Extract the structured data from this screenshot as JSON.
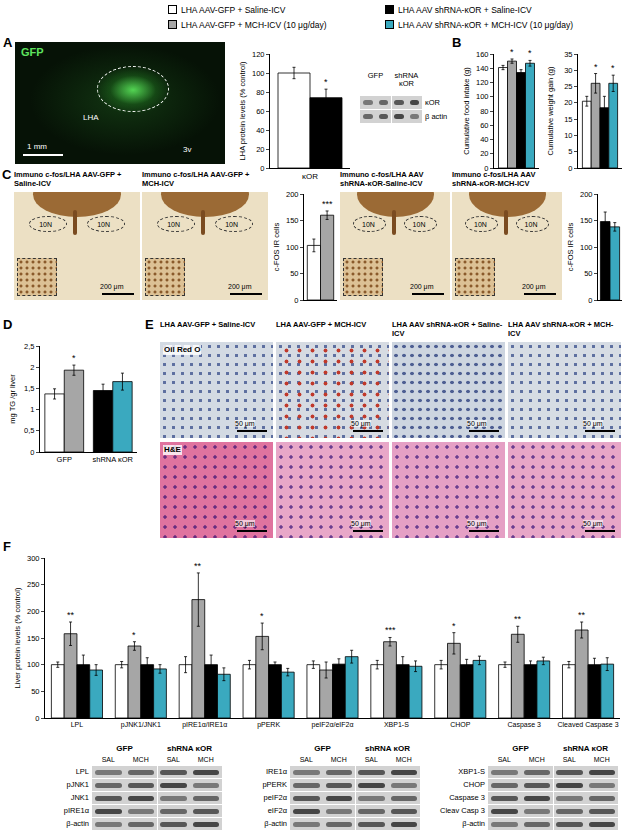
{
  "legend": [
    {
      "name": "LHA AAV-GFP + Saline-ICV",
      "color": "#ffffff"
    },
    {
      "name": "LHA AAV-GFP + MCH-ICV (10 μg/day)",
      "color": "#a6a6a6"
    },
    {
      "name": "LHA AAV shRNA-κOR + Saline-ICV",
      "color": "#000000"
    },
    {
      "name": "LHA AAV shRNA-κOR + MCH-ICV (10 μg/day)",
      "color": "#3aa9bf"
    }
  ],
  "panels": [
    "A",
    "B",
    "C",
    "D",
    "E",
    "F"
  ],
  "images": {
    "A": {
      "stain": "GFP",
      "labels": [
        "LHA",
        "3v"
      ],
      "scale": "1 mm"
    },
    "C": [
      {
        "title": "Immuno c-fos/LHA AAV-GFP + Saline-ICV",
        "labels": [
          "10N",
          "10N"
        ],
        "scale": "200 μm"
      },
      {
        "title": "Immuno c-fos/LHA AAV-GFP + MCH-ICV",
        "labels": [
          "10N",
          "10N"
        ],
        "scale": "200 μm"
      },
      {
        "title": "Immuno c-fos/LHA AAV shRNA-κOR-Saline-ICV",
        "labels": [
          "10N",
          "10N"
        ],
        "scale": "200 μm"
      },
      {
        "title": "Immuno c-fos/LHA AAV shRNA-κOR-MCH-ICV",
        "labels": [
          "10N",
          "10N"
        ],
        "scale": "200 μm"
      }
    ],
    "E": {
      "titles": [
        "LHA AAV-GFP + Saline-ICV",
        "LHA AAV-GFP + MCH-ICV",
        "LHA AAV shRNA-κOR + Saline-ICV",
        "LHA AAV shRNA-κOR + MCH-ICV"
      ],
      "rows": [
        {
          "stain": "Oil Red O",
          "scale": "50 μm"
        },
        {
          "stain": "H&E",
          "scale": "50 μm"
        }
      ]
    }
  },
  "blots": {
    "A": {
      "columns": [
        "GFP",
        "shRNA κOR"
      ],
      "rows": [
        "κOR",
        "β actin"
      ]
    },
    "F": [
      {
        "columns": [
          "GFP",
          "shRNA κOR"
        ],
        "lanes": [
          "SAL",
          "MCH",
          "SAL",
          "MCH"
        ],
        "rows": [
          "LPL",
          "pJNK1",
          "JNK1",
          "pIRE1α",
          "β-actin"
        ]
      },
      {
        "columns": [
          "GFP",
          "shRNA κOR"
        ],
        "lanes": [
          "SAL",
          "MCH",
          "SAL",
          "MCH"
        ],
        "rows": [
          "IRE1α",
          "pPERK",
          "peIF2α",
          "eIF2α",
          "β-actin"
        ]
      },
      {
        "columns": [
          "GFP",
          "shRNA κOR"
        ],
        "lanes": [
          "SAL",
          "MCH",
          "SAL",
          "MCH"
        ],
        "rows": [
          "XBP1-S",
          "CHOP",
          "Caspase 3",
          "Cleav Casp 3",
          "β-actin"
        ]
      }
    ]
  },
  "chart_data": [
    {
      "type": "bar",
      "y_label": "LHA protein levels (% control)",
      "categories": [
        "κOR"
      ],
      "ylim": [
        0,
        120
      ],
      "yticks": [
        0,
        20,
        40,
        60,
        80,
        100,
        120
      ],
      "series": [
        {
          "color": "#ffffff",
          "values": [
            100
          ],
          "errors": [
            6
          ]
        },
        {
          "color": "#000000",
          "values": [
            74
          ],
          "errors": [
            9
          ],
          "significance": [
            "*"
          ]
        }
      ]
    },
    {
      "type": "bar",
      "y_label": "Cumulative food intake (g)",
      "categories": [
        null
      ],
      "ylim": [
        0,
        160
      ],
      "yticks": [
        0,
        20,
        40,
        60,
        80,
        100,
        120,
        140,
        160
      ],
      "series": [
        {
          "color": "#ffffff",
          "values": [
            141
          ],
          "errors": [
            3
          ]
        },
        {
          "color": "#a6a6a6",
          "values": [
            150
          ],
          "errors": [
            3
          ],
          "significance": [
            "*"
          ]
        },
        {
          "color": "#000000",
          "values": [
            134
          ],
          "errors": [
            4
          ]
        },
        {
          "color": "#3aa9bf",
          "values": [
            147
          ],
          "errors": [
            4
          ],
          "significance": [
            "*"
          ]
        }
      ]
    },
    {
      "type": "bar",
      "y_label": "Cumulative weight gain (g)",
      "categories": [
        null
      ],
      "ylim": [
        0,
        35
      ],
      "yticks": [
        0,
        5,
        10,
        15,
        20,
        25,
        30,
        35
      ],
      "series": [
        {
          "color": "#ffffff",
          "values": [
            20.5
          ],
          "errors": [
            1.5
          ]
        },
        {
          "color": "#a6a6a6",
          "values": [
            26
          ],
          "errors": [
            3
          ],
          "significance": [
            "*"
          ]
        },
        {
          "color": "#000000",
          "values": [
            18.5
          ],
          "errors": [
            3.5
          ]
        },
        {
          "color": "#3aa9bf",
          "values": [
            26
          ],
          "errors": [
            2.5
          ],
          "significance": [
            "*"
          ]
        }
      ]
    },
    {
      "type": "bar",
      "y_label": "c-FOS IR cells",
      "categories": [
        null
      ],
      "ylim": [
        0,
        200
      ],
      "yticks": [
        0,
        50,
        100,
        150,
        200
      ],
      "series": [
        {
          "color": "#ffffff",
          "values": [
            103
          ],
          "errors": [
            12
          ]
        },
        {
          "color": "#a6a6a6",
          "values": [
            160
          ],
          "errors": [
            8
          ],
          "significance": [
            "***"
          ]
        }
      ]
    },
    {
      "type": "bar",
      "y_label": "c-FOS IR cells",
      "categories": [
        null
      ],
      "ylim": [
        0,
        200
      ],
      "yticks": [
        0,
        50,
        100,
        150,
        200
      ],
      "series": [
        {
          "color": "#000000",
          "values": [
            148
          ],
          "errors": [
            18
          ]
        },
        {
          "color": "#3aa9bf",
          "values": [
            138
          ],
          "errors": [
            8
          ]
        }
      ]
    },
    {
      "type": "bar",
      "y_label": "mg TG /gr liver",
      "categories": [
        "GFP",
        "shRNA κOR"
      ],
      "ylim": [
        0,
        2.5
      ],
      "yticks": [
        0,
        {
          "value": 0.5,
          "label": "0,5"
        },
        1,
        {
          "value": 1.5,
          "label": "1,5"
        },
        2,
        {
          "value": 2.5,
          "label": "2,5"
        }
      ],
      "series": [
        {
          "colors": [
            "#ffffff",
            "#000000"
          ],
          "values": [
            1.37,
            1.45
          ],
          "errors": [
            0.12,
            0.15
          ]
        },
        {
          "colors": [
            "#a6a6a6",
            "#3aa9bf"
          ],
          "values": [
            1.93,
            1.66
          ],
          "errors": [
            0.12,
            0.2
          ],
          "significance": [
            "*",
            null
          ]
        }
      ]
    },
    {
      "type": "bar",
      "y_label": "Liver protein levels (% control)",
      "categories": [
        "LPL",
        "pJNK1/JNK1",
        "pIRE1α/IRE1α",
        "pPERK",
        "peIF2α/eIF2α",
        "XBP1-S",
        "CHOP",
        "Caspase 3",
        "Cleaved Caspase 3"
      ],
      "ylim": [
        0,
        300
      ],
      "yticks": [
        0,
        50,
        100,
        150,
        200,
        250,
        300
      ],
      "series": [
        {
          "color": "#ffffff",
          "values": [
            100,
            100,
            100,
            100,
            100,
            100,
            100,
            100,
            100
          ],
          "errors": [
            5,
            6,
            15,
            8,
            7,
            8,
            8,
            5,
            6
          ]
        },
        {
          "color": "#a6a6a6",
          "values": [
            158,
            135,
            222,
            153,
            90,
            143,
            140,
            157,
            165
          ],
          "errors": [
            22,
            8,
            50,
            25,
            15,
            8,
            20,
            15,
            15
          ],
          "significance": [
            "**",
            "*",
            "**",
            "*",
            null,
            "***",
            "*",
            "**",
            "**"
          ]
        },
        {
          "color": "#000000",
          "values": [
            100,
            100,
            100,
            100,
            101,
            100,
            100,
            100,
            100
          ],
          "errors": [
            18,
            13,
            18,
            5,
            10,
            15,
            10,
            7,
            12
          ]
        },
        {
          "color": "#3aa9bf",
          "values": [
            90,
            92,
            82,
            86,
            115,
            97,
            108,
            107,
            101
          ],
          "errors": [
            10,
            8,
            12,
            7,
            12,
            10,
            8,
            7,
            12
          ]
        }
      ]
    }
  ]
}
